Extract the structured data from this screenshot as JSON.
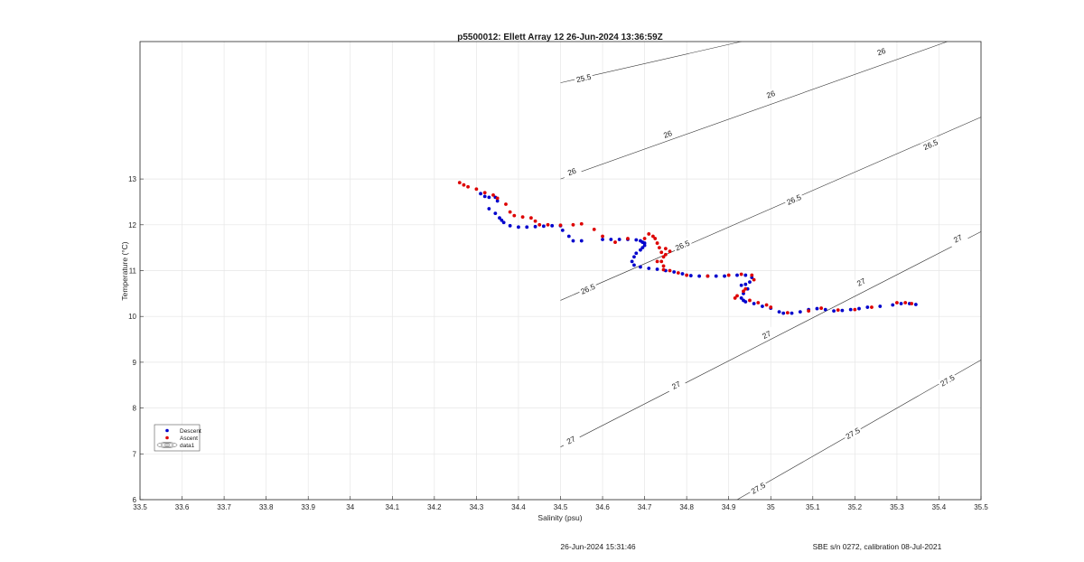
{
  "chart_data": {
    "type": "scatter",
    "title": "p5500012: Ellett Array 12 26-Jun-2024 13:36:59Z",
    "xlabel": "Salinity (psu)",
    "ylabel": "Temperature (°C)",
    "xlim": [
      33.5,
      35.5
    ],
    "ylim": [
      6,
      16
    ],
    "grid": true,
    "x_ticks": [
      "33.5",
      "33.6",
      "33.7",
      "33.8",
      "33.9",
      "34",
      "34.1",
      "34.2",
      "34.3",
      "34.4",
      "34.5",
      "34.6",
      "34.7",
      "34.8",
      "34.9",
      "35",
      "35.1",
      "35.2",
      "35.3",
      "35.4",
      "35.5"
    ],
    "y_ticks": [
      "6",
      "7",
      "8",
      "9",
      "10",
      "11",
      "12",
      "13"
    ],
    "legend_position": "bottom-left",
    "legend": [
      "Descent",
      "Ascent",
      "data1"
    ],
    "series": [
      {
        "name": "Descent",
        "color": "#0000cc",
        "points": [
          [
            34.31,
            12.68
          ],
          [
            34.32,
            12.62
          ],
          [
            34.33,
            12.6
          ],
          [
            34.345,
            12.6
          ],
          [
            34.35,
            12.52
          ],
          [
            34.33,
            12.35
          ],
          [
            34.345,
            12.25
          ],
          [
            34.355,
            12.15
          ],
          [
            34.36,
            12.1
          ],
          [
            34.365,
            12.05
          ],
          [
            34.38,
            11.98
          ],
          [
            34.4,
            11.95
          ],
          [
            34.42,
            11.95
          ],
          [
            34.44,
            11.96
          ],
          [
            34.46,
            11.97
          ],
          [
            34.48,
            11.98
          ],
          [
            34.5,
            11.98
          ],
          [
            34.505,
            11.88
          ],
          [
            34.52,
            11.75
          ],
          [
            34.53,
            11.65
          ],
          [
            34.55,
            11.65
          ],
          [
            34.6,
            11.68
          ],
          [
            34.62,
            11.68
          ],
          [
            34.64,
            11.68
          ],
          [
            34.66,
            11.68
          ],
          [
            34.68,
            11.67
          ],
          [
            34.69,
            11.65
          ],
          [
            34.695,
            11.62
          ],
          [
            34.7,
            11.6
          ],
          [
            34.7,
            11.55
          ],
          [
            34.695,
            11.5
          ],
          [
            34.69,
            11.45
          ],
          [
            34.68,
            11.38
          ],
          [
            34.675,
            11.3
          ],
          [
            34.67,
            11.2
          ],
          [
            34.675,
            11.12
          ],
          [
            34.69,
            11.08
          ],
          [
            34.71,
            11.05
          ],
          [
            34.73,
            11.03
          ],
          [
            34.75,
            11.0
          ],
          [
            34.77,
            10.97
          ],
          [
            34.79,
            10.93
          ],
          [
            34.81,
            10.89
          ],
          [
            34.83,
            10.88
          ],
          [
            34.85,
            10.88
          ],
          [
            34.87,
            10.88
          ],
          [
            34.89,
            10.88
          ],
          [
            34.92,
            10.9
          ],
          [
            34.94,
            10.9
          ],
          [
            34.955,
            10.85
          ],
          [
            34.95,
            10.75
          ],
          [
            34.94,
            10.7
          ],
          [
            34.93,
            10.68
          ],
          [
            34.945,
            10.6
          ],
          [
            34.935,
            10.5
          ],
          [
            34.93,
            10.4
          ],
          [
            34.935,
            10.35
          ],
          [
            34.94,
            10.32
          ],
          [
            34.96,
            10.28
          ],
          [
            34.98,
            10.22
          ],
          [
            35.0,
            10.18
          ],
          [
            35.02,
            10.1
          ],
          [
            35.03,
            10.07
          ],
          [
            35.05,
            10.07
          ],
          [
            35.07,
            10.1
          ],
          [
            35.09,
            10.15
          ],
          [
            35.11,
            10.17
          ],
          [
            35.13,
            10.15
          ],
          [
            35.15,
            10.12
          ],
          [
            35.17,
            10.13
          ],
          [
            35.19,
            10.15
          ],
          [
            35.21,
            10.17
          ],
          [
            35.23,
            10.2
          ],
          [
            35.26,
            10.22
          ],
          [
            35.29,
            10.25
          ],
          [
            35.31,
            10.28
          ],
          [
            35.33,
            10.28
          ],
          [
            35.345,
            10.26
          ]
        ]
      },
      {
        "name": "Ascent",
        "color": "#dd0000",
        "points": [
          [
            34.26,
            12.92
          ],
          [
            34.27,
            12.87
          ],
          [
            34.28,
            12.83
          ],
          [
            34.3,
            12.78
          ],
          [
            34.32,
            12.7
          ],
          [
            34.34,
            12.65
          ],
          [
            34.35,
            12.58
          ],
          [
            34.37,
            12.45
          ],
          [
            34.38,
            12.28
          ],
          [
            34.39,
            12.2
          ],
          [
            34.41,
            12.17
          ],
          [
            34.43,
            12.15
          ],
          [
            34.44,
            12.08
          ],
          [
            34.45,
            12.0
          ],
          [
            34.47,
            12.0
          ],
          [
            34.5,
            11.99
          ],
          [
            34.53,
            12.0
          ],
          [
            34.55,
            12.02
          ],
          [
            34.58,
            11.9
          ],
          [
            34.6,
            11.75
          ],
          [
            34.63,
            11.62
          ],
          [
            34.66,
            11.7
          ],
          [
            34.7,
            11.7
          ],
          [
            34.71,
            11.8
          ],
          [
            34.72,
            11.75
          ],
          [
            34.725,
            11.7
          ],
          [
            34.73,
            11.6
          ],
          [
            34.735,
            11.5
          ],
          [
            34.74,
            11.4
          ],
          [
            34.745,
            11.3
          ],
          [
            34.74,
            11.2
          ],
          [
            34.745,
            11.1
          ],
          [
            34.75,
            11.48
          ],
          [
            34.76,
            11.42
          ],
          [
            34.75,
            11.35
          ],
          [
            34.73,
            11.2
          ],
          [
            34.745,
            11.02
          ],
          [
            34.76,
            11.0
          ],
          [
            34.78,
            10.95
          ],
          [
            34.8,
            10.9
          ],
          [
            34.85,
            10.88
          ],
          [
            34.9,
            10.9
          ],
          [
            34.93,
            10.92
          ],
          [
            34.955,
            10.9
          ],
          [
            34.96,
            10.8
          ],
          [
            34.94,
            10.6
          ],
          [
            34.935,
            10.55
          ],
          [
            34.92,
            10.45
          ],
          [
            34.915,
            10.4
          ],
          [
            34.95,
            10.35
          ],
          [
            34.97,
            10.3
          ],
          [
            34.99,
            10.25
          ],
          [
            35.0,
            10.2
          ],
          [
            35.04,
            10.08
          ],
          [
            35.09,
            10.12
          ],
          [
            35.12,
            10.18
          ],
          [
            35.16,
            10.14
          ],
          [
            35.2,
            10.15
          ],
          [
            35.24,
            10.2
          ],
          [
            35.3,
            10.3
          ],
          [
            35.32,
            10.3
          ],
          [
            35.335,
            10.28
          ]
        ]
      }
    ],
    "isopycnals": [
      {
        "sigma": "25.5",
        "labels": 1
      },
      {
        "sigma": "26",
        "labels": 4
      },
      {
        "sigma": "26.5",
        "labels": 4
      },
      {
        "sigma": "27",
        "labels": 5
      },
      {
        "sigma": "27.5",
        "labels": 3
      }
    ]
  },
  "footer": {
    "timestamp": "26-Jun-2024 15:31:46",
    "calibration": "SBE s/n 0272, calibration 08-Jul-2021"
  }
}
